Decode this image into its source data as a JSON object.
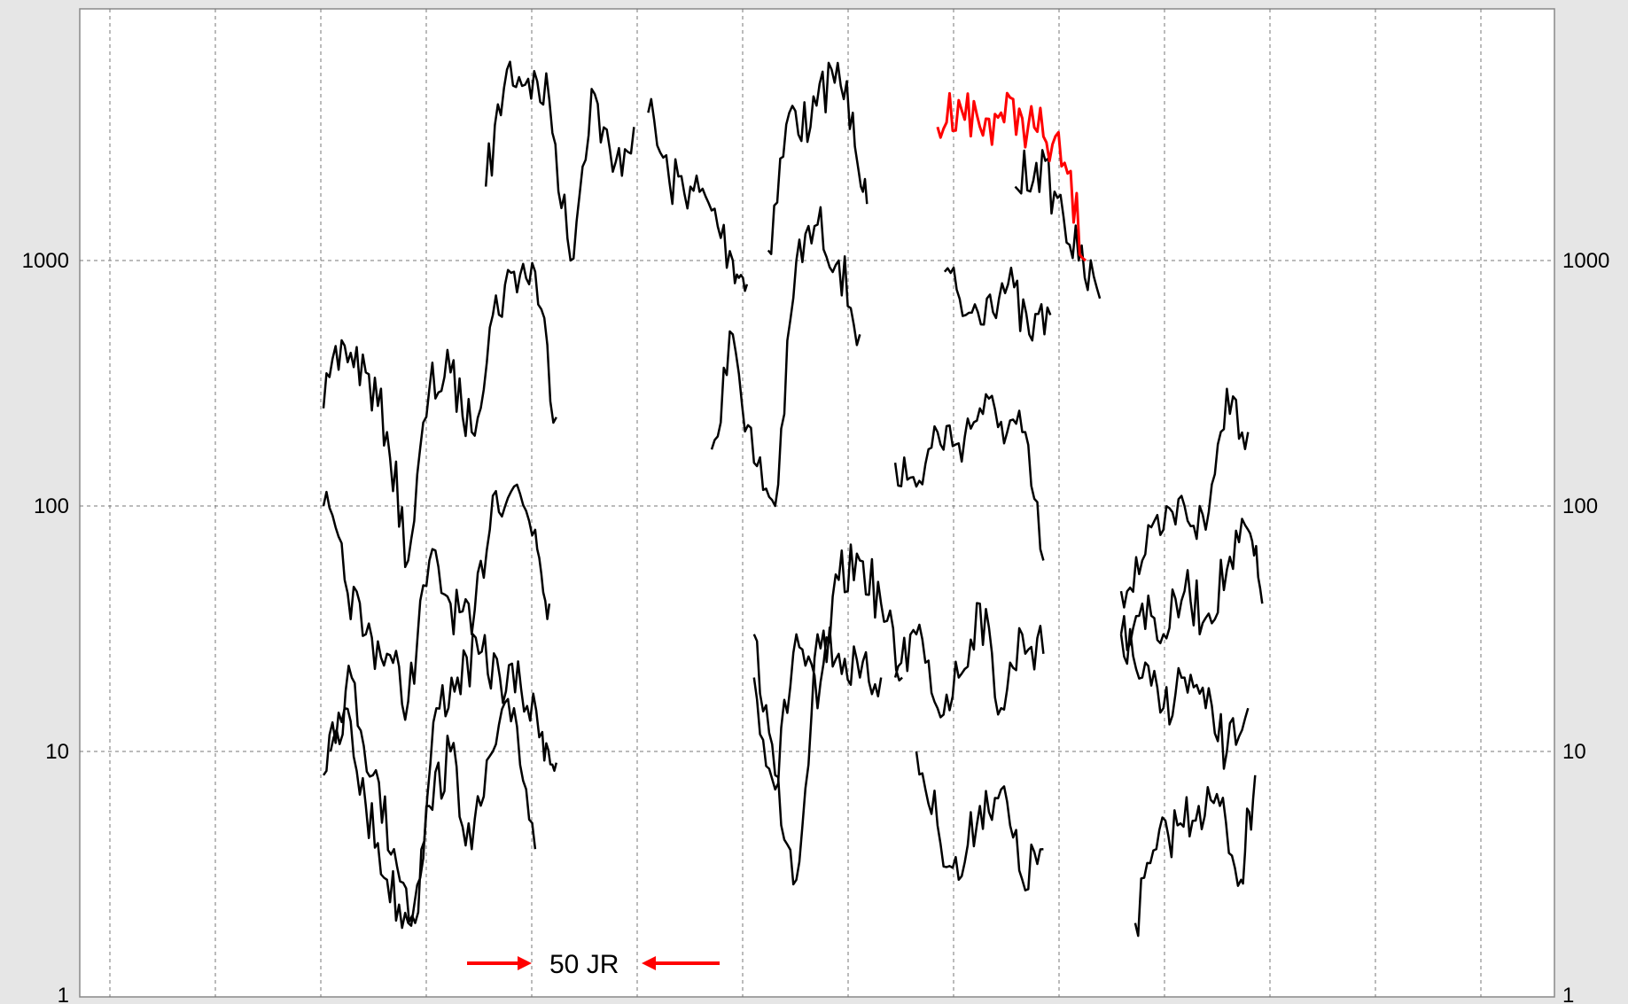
{
  "chart_data": {
    "type": "line",
    "title": "",
    "xlabel": "",
    "ylabel": "",
    "y_scale": "log",
    "ylim": [
      1,
      10000
    ],
    "xlim": [
      0,
      140
    ],
    "y_ticks_left": [
      "1000",
      "100",
      "10",
      "1"
    ],
    "y_ticks_right": [
      "1000",
      "100",
      "10",
      "1"
    ],
    "grid": true,
    "annotation": {
      "text": "50 JR",
      "color": "#ff0000"
    },
    "series": [
      {
        "color": "#000000",
        "x": [
          23,
          26,
          29,
          32,
          35,
          38,
          41,
          44
        ],
        "y": [
          2000,
          6000,
          5500,
          4500,
          1000,
          5000,
          2300,
          3500
        ]
      },
      {
        "color": "#000000",
        "x": [
          46,
          49,
          52,
          55,
          58,
          60
        ],
        "y": [
          4000,
          2100,
          2000,
          1600,
          1000,
          800
        ]
      },
      {
        "color": "#000000",
        "x": [
          63,
          66,
          69,
          72,
          75,
          77
        ],
        "y": [
          1100,
          4000,
          3500,
          6000,
          4000,
          1700
        ]
      },
      {
        "color": "#000000",
        "x": [
          0,
          3,
          6,
          9,
          12,
          15,
          18,
          21,
          24,
          27,
          30,
          33
        ],
        "y": [
          250,
          450,
          350,
          200,
          60,
          300,
          350,
          200,
          600,
          900,
          900,
          230
        ]
      },
      {
        "color": "#000000",
        "x": [
          55,
          58,
          61,
          64,
          67,
          70,
          73,
          76
        ],
        "y": [
          170,
          500,
          150,
          100,
          1000,
          1400,
          1000,
          500
        ]
      },
      {
        "color": "#000000",
        "x": [
          0,
          3,
          6,
          9,
          12,
          15,
          18,
          21,
          24,
          27,
          30,
          32
        ],
        "y": [
          100,
          50,
          30,
          25,
          16,
          60,
          40,
          30,
          110,
          120,
          80,
          40
        ]
      },
      {
        "color": "#000000",
        "x": [
          1,
          4,
          7,
          10,
          13,
          16,
          19,
          22,
          25,
          28,
          31,
          33
        ],
        "y": [
          10,
          20,
          8,
          4,
          2,
          15,
          20,
          25,
          20,
          18,
          12,
          9
        ]
      },
      {
        "color": "#000000",
        "x": [
          0,
          3,
          6,
          9,
          12,
          15,
          18,
          21,
          24,
          27,
          30
        ],
        "y": [
          8,
          15,
          6,
          3,
          2,
          6,
          10,
          4,
          10,
          15,
          4
        ]
      },
      {
        "color": "#000000",
        "x": [
          61,
          64,
          67,
          70,
          73,
          76,
          79,
          82
        ],
        "y": [
          20,
          7,
          30,
          15,
          50,
          60,
          40,
          20
        ]
      },
      {
        "color": "#000000",
        "x": [
          61,
          64,
          67,
          70,
          73,
          76,
          79
        ],
        "y": [
          30,
          8,
          3,
          30,
          25,
          20,
          20
        ]
      },
      {
        "color": "#000000",
        "x": [
          81,
          84,
          87,
          90,
          93,
          96,
          99,
          102
        ],
        "y": [
          150,
          120,
          200,
          180,
          250,
          220,
          200,
          60
        ]
      },
      {
        "color": "#000000",
        "x": [
          81,
          84,
          87,
          90,
          93,
          96,
          99,
          102
        ],
        "y": [
          20,
          30,
          15,
          20,
          40,
          15,
          30,
          25
        ]
      },
      {
        "color": "#000000",
        "x": [
          84,
          87,
          90,
          93,
          96,
          99,
          102
        ],
        "y": [
          10,
          5,
          3,
          6,
          7,
          3,
          4
        ]
      },
      {
        "color": "#000000",
        "x": [
          88,
          91,
          94,
          97,
          100,
          103
        ],
        "y": [
          900,
          600,
          700,
          800,
          500,
          600
        ]
      },
      {
        "color": "#000000",
        "x": [
          98,
          101,
          104,
          107,
          110
        ],
        "y": [
          2000,
          2500,
          1800,
          1000,
          700
        ]
      },
      {
        "color": "#ff0000",
        "x": [
          87,
          90,
          93,
          96,
          99,
          102,
          105,
          108
        ],
        "y": [
          3500,
          4500,
          3500,
          4000,
          3800,
          3200,
          2500,
          1000
        ]
      },
      {
        "color": "#000000",
        "x": [
          113,
          116,
          119,
          122,
          125,
          128,
          131
        ],
        "y": [
          45,
          60,
          80,
          100,
          80,
          300,
          200
        ]
      },
      {
        "color": "#000000",
        "x": [
          113,
          116,
          119,
          122,
          125,
          128,
          131,
          133
        ],
        "y": [
          30,
          40,
          30,
          45,
          35,
          55,
          80,
          40
        ]
      },
      {
        "color": "#000000",
        "x": [
          113,
          116,
          119,
          122,
          125,
          128,
          131
        ],
        "y": [
          30,
          20,
          15,
          20,
          15,
          10,
          15
        ]
      },
      {
        "color": "#000000",
        "x": [
          115,
          118,
          121,
          124,
          127,
          130,
          132
        ],
        "y": [
          2,
          4,
          5,
          6,
          6,
          3,
          8
        ]
      }
    ]
  }
}
